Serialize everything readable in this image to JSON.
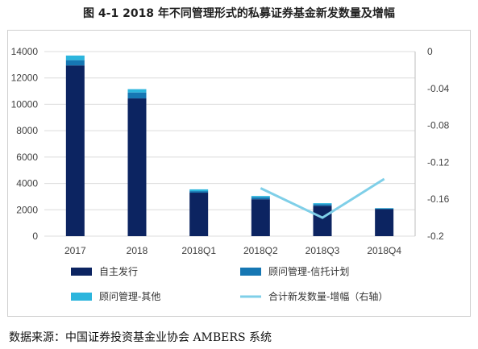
{
  "title": "图 4-1 2018 年不同管理形式的私募证券基金新发数量及增幅",
  "source_note": "数据来源：中国证券投资基金业协会 AMBERS 系统",
  "colors": {
    "self": "#0c2461",
    "trust": "#1677b3",
    "other": "#2cb5dd",
    "line": "#7fcfe8",
    "grid": "#dcdcdc"
  },
  "chart_data": {
    "type": "bar",
    "categories": [
      "2017",
      "2018",
      "2018Q1",
      "2018Q2",
      "2018Q3",
      "2018Q4"
    ],
    "series": [
      {
        "name": "自主发行",
        "type": "bar",
        "axis": "left",
        "values": [
          12950,
          10450,
          3300,
          2800,
          2300,
          2050
        ]
      },
      {
        "name": "顾问管理-信托计划",
        "type": "bar",
        "axis": "left",
        "values": [
          400,
          450,
          120,
          150,
          120,
          50
        ]
      },
      {
        "name": "顾问管理-其他",
        "type": "bar",
        "axis": "left",
        "values": [
          350,
          250,
          130,
          100,
          80,
          30
        ]
      },
      {
        "name": "合计新发数量-增幅（右轴）",
        "type": "line",
        "axis": "right",
        "values": [
          null,
          null,
          null,
          -0.148,
          -0.18,
          -0.138
        ]
      }
    ],
    "y_left": {
      "min": 0,
      "max": 14000,
      "ticks": [
        0,
        2000,
        4000,
        6000,
        8000,
        10000,
        12000,
        14000
      ]
    },
    "y_right": {
      "min": -0.2,
      "max": 0,
      "ticks": [
        "0",
        "-0.04",
        "-0.08",
        "-0.12",
        "-0.16",
        "-0.2"
      ]
    },
    "grid": true,
    "legend_position": "bottom"
  }
}
